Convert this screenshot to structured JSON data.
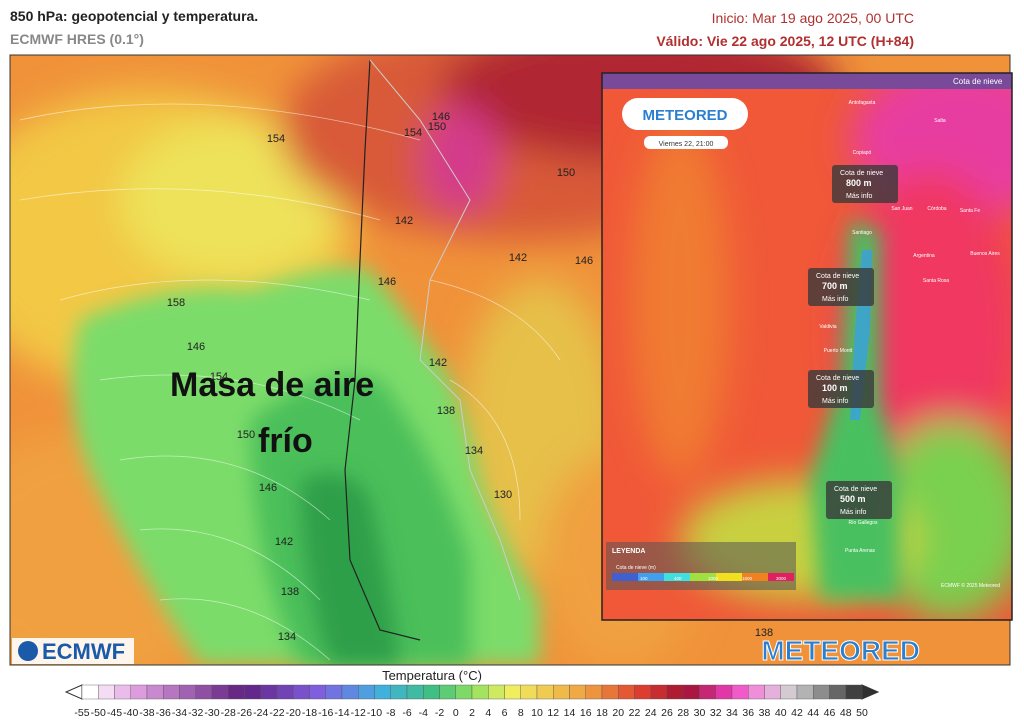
{
  "header": {
    "title": "850 hPa: geopotencial y temperatura.",
    "model": "ECMWF HRES (0.1°)",
    "init": "Inicio: Mar 19 ago 2025, 00 UTC",
    "valid": "Válido: Vie 22 ago 2025, 12 UTC (H+84)"
  },
  "map": {
    "annotation_line1": "Masa de aire",
    "annotation_line2": "frío",
    "contour_labels": [
      "154",
      "154",
      "150",
      "146",
      "150",
      "142",
      "142",
      "146",
      "146",
      "158",
      "154",
      "150",
      "146",
      "142",
      "138",
      "134",
      "142",
      "138",
      "134",
      "130",
      "138",
      "146"
    ],
    "logo_left": "ECMWF",
    "logo_right": "METEORED"
  },
  "inset": {
    "header": "Cota de nieve",
    "logo": "METEORED",
    "time": "Viernes 22, 21:00",
    "popups": [
      {
        "title": "Cota de nieve",
        "value": "800 m",
        "link": "Más info"
      },
      {
        "title": "Cota de nieve",
        "value": "700 m",
        "link": "Más info"
      },
      {
        "title": "Cota de nieve",
        "value": "100 m",
        "link": "Más info"
      },
      {
        "title": "Cota de nieve",
        "value": "500 m",
        "link": "Más info"
      }
    ],
    "cities": [
      "Antofagasta",
      "Salta",
      "Copiapó",
      "Córdoba",
      "San Juan",
      "Santiago",
      "Santa Fe",
      "Buenos Aires",
      "Argentina",
      "Santa Rosa",
      "Valdivia",
      "Puerto Montt",
      "Río Gallegos",
      "Punta Arenas"
    ],
    "legend_title": "LEYENDA",
    "legend_subtitle": "Cota de nieve (m)",
    "legend_ticks": [
      "100",
      "400",
      "1000",
      "1600",
      "3000"
    ],
    "credit": "ECMWF © 2025 Meteored"
  },
  "colorbar": {
    "title": "Temperatura (°C)",
    "labels": [
      -55,
      -50,
      -45,
      -40,
      -38,
      -36,
      -34,
      -32,
      -30,
      -28,
      -26,
      -24,
      -22,
      -20,
      -18,
      -16,
      -14,
      -12,
      -10,
      -8,
      -6,
      -4,
      -2,
      0,
      2,
      4,
      6,
      8,
      10,
      12,
      14,
      16,
      18,
      20,
      22,
      24,
      26,
      28,
      30,
      32,
      34,
      36,
      38,
      40,
      42,
      44,
      46,
      48,
      50
    ]
  }
}
